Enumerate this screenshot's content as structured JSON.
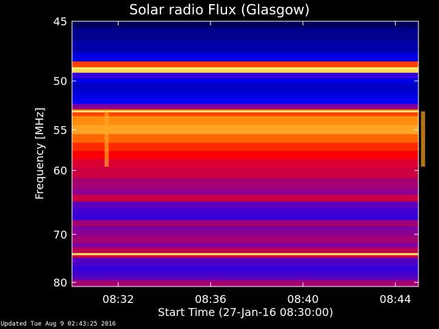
{
  "footer": {
    "updated_text": "Updated Tue Aug  9 02:43:25 2016"
  },
  "chart_data": {
    "type": "heatmap",
    "title": "Solar radio Flux (Glasgow)",
    "xlabel": "Start Time (27-Jan-16 08:30:00)",
    "ylabel": "Frequency [MHz]",
    "x_unit": "minutes after 08:30",
    "x_range": [
      0,
      15
    ],
    "x_ticks": [
      2,
      6,
      10,
      14
    ],
    "x_tick_labels": [
      "08:32",
      "08:36",
      "08:40",
      "08:44"
    ],
    "y_range": [
      45,
      81
    ],
    "y_ticks": [
      45,
      50,
      55,
      60,
      70,
      80
    ],
    "y_tick_labels": [
      "45",
      "50",
      "55",
      "60",
      "70",
      "80"
    ],
    "y_scale": "reciprocal",
    "y_inverted": true,
    "colormap": [
      "#000000",
      "#000080",
      "#0000ff",
      "#8000a0",
      "#ff0000",
      "#ff8000",
      "#ffff80"
    ],
    "frequency_profile": {
      "frequency_mhz": [
        45,
        46,
        47,
        48,
        48.5,
        49,
        49.5,
        50,
        50.5,
        51,
        51.5,
        52,
        52.5,
        53,
        54,
        55,
        56,
        57,
        58,
        59,
        60,
        62,
        63,
        64,
        65,
        66,
        67,
        68,
        69,
        70,
        71,
        72,
        73,
        74,
        75,
        76,
        77,
        78,
        79,
        80
      ],
      "intensity": [
        0.12,
        0.18,
        0.22,
        0.3,
        0.75,
        0.95,
        0.4,
        0.3,
        0.25,
        0.28,
        0.3,
        0.35,
        0.5,
        0.75,
        0.85,
        0.88,
        0.8,
        0.72,
        0.66,
        0.62,
        0.6,
        0.55,
        0.52,
        0.6,
        0.45,
        0.42,
        0.4,
        0.55,
        0.5,
        0.52,
        0.55,
        0.5,
        0.58,
        0.62,
        0.45,
        0.42,
        0.4,
        0.42,
        0.45,
        0.55
      ]
    },
    "bright_lines_mhz": [
      48.9,
      53,
      73.8
    ],
    "vertical_features_minutes": [
      1.5,
      15.2
    ]
  }
}
